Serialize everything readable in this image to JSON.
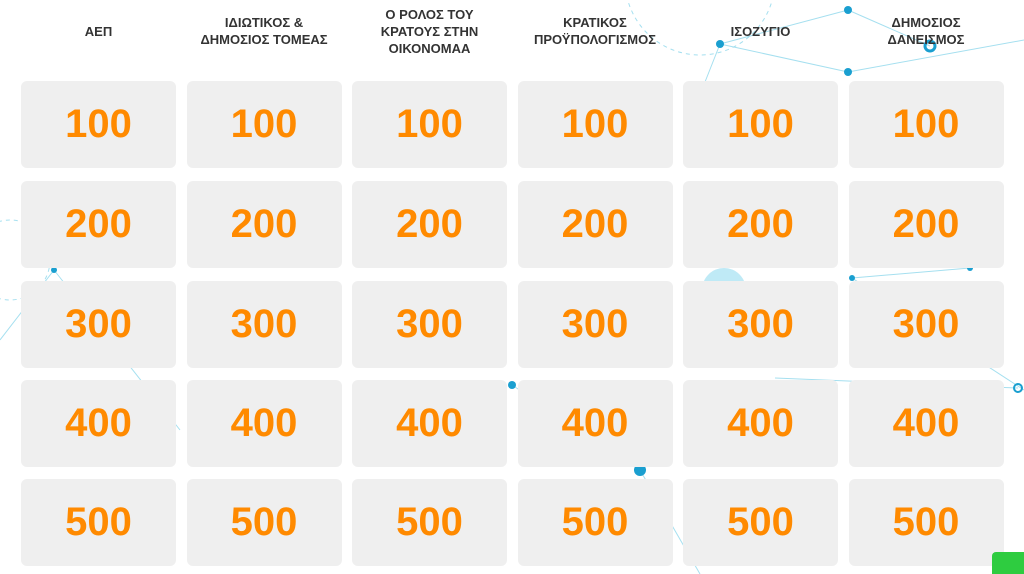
{
  "board": {
    "columns": [
      {
        "title_lines": [
          "ΑΕΠ"
        ],
        "cells": [
          100,
          200,
          300,
          400,
          500
        ]
      },
      {
        "title_lines": [
          "ΙΔΙΩΤΙΚΟΣ &",
          "ΔΗΜΟΣΙΟΣ ΤΟΜΕΑΣ"
        ],
        "cells": [
          100,
          200,
          300,
          400,
          500
        ]
      },
      {
        "title_lines": [
          "Ο ΡΟΛΟΣ ΤΟΥ",
          "ΚΡΑΤΟΥΣ ΣΤΗΝ",
          "ΟΙΚΟΝΟΜΑΑ"
        ],
        "cells": [
          100,
          200,
          300,
          400,
          500
        ]
      },
      {
        "title_lines": [
          "ΚΡΑΤΙΚΟΣ",
          "ΠΡΟΫΠΟΛΟΓΙΣΜΟΣ"
        ],
        "cells": [
          100,
          200,
          300,
          400,
          500
        ]
      },
      {
        "title_lines": [
          "ΙΣΟΖΥΓΙΟ"
        ],
        "cells": [
          100,
          200,
          300,
          400,
          500
        ]
      },
      {
        "title_lines": [
          "ΔΗΜΟΣΙΟΣ",
          "ΔΑΝΕΙΣΜΟΣ"
        ],
        "cells": [
          100,
          200,
          300,
          400,
          500
        ]
      }
    ]
  }
}
